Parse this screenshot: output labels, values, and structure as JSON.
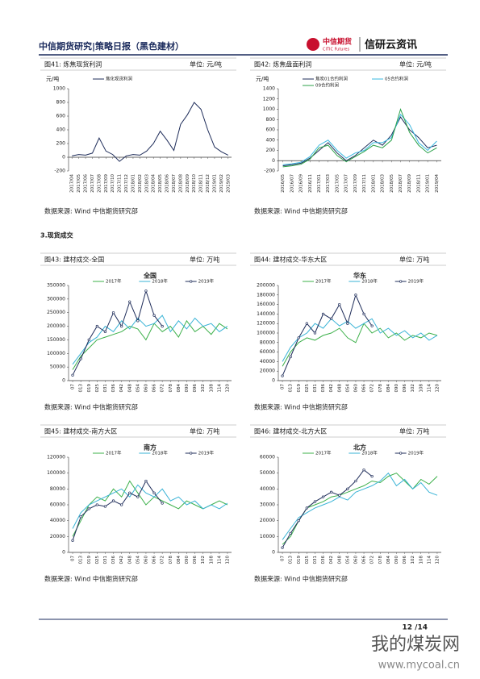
{
  "header": {
    "title": "中信期货研究|策略日报（黑色建材）",
    "logo": "中信期货",
    "logo_en": "CITIC Futures",
    "brand": "信研云资讯"
  },
  "section": "3.现货成交",
  "chart_data": [
    {
      "type": "line",
      "figure": "图41: 炼焦现货利润",
      "unit": "单位: 元/吨",
      "source": "数据来源: Wind 中信期货研究部",
      "categories": [
        "2017/04",
        "2017/05",
        "2017/06",
        "2017/07",
        "2017/08",
        "2017/09",
        "2017/10",
        "2017/11",
        "2017/12",
        "2018/01",
        "2018/02",
        "2018/03",
        "2018/04",
        "2018/05",
        "2018/06",
        "2018/07",
        "2018/08",
        "2018/09",
        "2018/10",
        "2018/11",
        "2018/12",
        "2019/01",
        "2019/02",
        "2019/03"
      ],
      "series": [
        {
          "name": "焦化现货利润",
          "color": "#1f2d5a",
          "values": [
            20,
            40,
            30,
            60,
            280,
            90,
            40,
            -60,
            20,
            40,
            30,
            90,
            200,
            380,
            250,
            100,
            480,
            620,
            800,
            700,
            400,
            150,
            80,
            30
          ]
        }
      ],
      "ylim": [
        -200,
        1000
      ],
      "yticks": [
        -200,
        0,
        200,
        400,
        600,
        800,
        1000
      ],
      "y_label": "元/吨"
    },
    {
      "type": "line",
      "figure": "图42: 炼焦盘面利润",
      "unit": "单位: 元/吨",
      "source": "数据来源: Wind 中信期货研究部",
      "categories": [
        "2016/05",
        "2016/07",
        "2016/09",
        "2016/11",
        "2017/01",
        "2017/03",
        "2017/05",
        "2017/07",
        "2017/09",
        "2017/11",
        "2018/01",
        "2018/03",
        "2018/05",
        "2018/07",
        "2018/09",
        "2018/11",
        "2019/01",
        "2019/04"
      ],
      "series": [
        {
          "name": "焦炭01合约利润",
          "color": "#1f2d5a",
          "values": [
            -100,
            -80,
            -50,
            50,
            200,
            350,
            150,
            0,
            100,
            250,
            400,
            300,
            500,
            850,
            600,
            450,
            250,
            300
          ]
        },
        {
          "name": "05合约利润",
          "color": "#3ab8e0",
          "values": [
            -80,
            -60,
            -30,
            80,
            300,
            400,
            200,
            50,
            150,
            200,
            350,
            350,
            450,
            900,
            700,
            350,
            200,
            380
          ]
        },
        {
          "name": "09合约利润",
          "color": "#2ca24a",
          "values": [
            -120,
            -100,
            -70,
            30,
            250,
            300,
            100,
            -20,
            80,
            180,
            300,
            250,
            400,
            1000,
            550,
            300,
            150,
            250
          ]
        }
      ],
      "ylim": [
        -200,
        1400
      ],
      "yticks": [
        -200,
        0,
        200,
        400,
        600,
        800,
        1000,
        1200,
        1400
      ],
      "y_label": "元/吨"
    },
    {
      "type": "line",
      "figure": "图43: 建材成交-全国",
      "unit": "单位: 万吨",
      "source": "数据来源: Wind 中信期货研究部",
      "title": "全国",
      "categories": [
        "07",
        "013",
        "019",
        "025",
        "031",
        "036",
        "042",
        "048",
        "054",
        "060",
        "066",
        "072",
        "078",
        "084",
        "090",
        "096",
        "102",
        "108",
        "114",
        "120"
      ],
      "series": [
        {
          "name": "2017年",
          "color": "#3cb04a",
          "values": [
            40000,
            90000,
            120000,
            150000,
            160000,
            170000,
            180000,
            200000,
            190000,
            150000,
            210000,
            180000,
            200000,
            160000,
            220000,
            180000,
            200000,
            170000,
            210000,
            190000
          ]
        },
        {
          "name": "2018年",
          "color": "#39b3d6",
          "values": [
            60000,
            100000,
            140000,
            160000,
            200000,
            180000,
            220000,
            190000,
            230000,
            200000,
            210000,
            240000,
            180000,
            220000,
            190000,
            230000,
            200000,
            210000,
            180000,
            200000
          ]
        },
        {
          "name": "2019年",
          "color": "#1f2d5a",
          "markers": true,
          "values": [
            20000,
            80000,
            150000,
            200000,
            180000,
            250000,
            200000,
            290000,
            220000,
            330000,
            240000,
            200000,
            null,
            null,
            null,
            null,
            null,
            null,
            null,
            null
          ]
        }
      ],
      "ylim": [
        0,
        350000
      ],
      "yticks": [
        0,
        50000,
        100000,
        150000,
        200000,
        250000,
        300000,
        350000
      ]
    },
    {
      "type": "line",
      "figure": "图44: 建材成交-华东大区",
      "unit": "单位: 万吨",
      "source": "数据来源: Wind 中信期货研究部",
      "title": "华东",
      "categories": [
        "07",
        "013",
        "019",
        "025",
        "031",
        "036",
        "042",
        "048",
        "054",
        "060",
        "066",
        "072",
        "078",
        "084",
        "090",
        "096",
        "102",
        "108",
        "114",
        "120"
      ],
      "series": [
        {
          "name": "2017年",
          "color": "#3cb04a",
          "values": [
            30000,
            60000,
            80000,
            90000,
            85000,
            95000,
            100000,
            110000,
            90000,
            80000,
            120000,
            100000,
            110000,
            90000,
            100000,
            85000,
            95000,
            90000,
            100000,
            95000
          ]
        },
        {
          "name": "2018年",
          "color": "#39b3d6",
          "values": [
            40000,
            70000,
            90000,
            100000,
            120000,
            110000,
            130000,
            115000,
            125000,
            110000,
            120000,
            130000,
            100000,
            110000,
            95000,
            105000,
            90000,
            100000,
            85000,
            95000
          ]
        },
        {
          "name": "2019年",
          "color": "#1f2d5a",
          "markers": true,
          "values": [
            10000,
            50000,
            90000,
            120000,
            100000,
            140000,
            130000,
            160000,
            120000,
            180000,
            140000,
            115000,
            null,
            null,
            null,
            null,
            null,
            null,
            null,
            null
          ]
        }
      ],
      "ylim": [
        0,
        200000
      ],
      "yticks": [
        0,
        20000,
        40000,
        60000,
        80000,
        100000,
        120000,
        140000,
        160000,
        180000,
        200000
      ]
    },
    {
      "type": "line",
      "figure": "图45: 建材成交-南方大区",
      "unit": "单位: 万吨",
      "source": "数据来源: Wind 中信期货研究部",
      "title": "南方",
      "categories": [
        "07",
        "013",
        "019",
        "025",
        "031",
        "036",
        "042",
        "048",
        "054",
        "060",
        "066",
        "072",
        "078",
        "084",
        "090",
        "096",
        "102",
        "108",
        "114",
        "120"
      ],
      "series": [
        {
          "name": "2017年",
          "color": "#3cb04a",
          "values": [
            20000,
            40000,
            60000,
            70000,
            65000,
            80000,
            70000,
            90000,
            75000,
            60000,
            70000,
            65000,
            60000,
            55000,
            65000,
            60000,
            55000,
            60000,
            65000,
            60000
          ]
        },
        {
          "name": "2018年",
          "color": "#39b3d6",
          "values": [
            30000,
            50000,
            60000,
            65000,
            70000,
            75000,
            80000,
            70000,
            85000,
            75000,
            70000,
            80000,
            65000,
            70000,
            60000,
            65000,
            55000,
            60000,
            55000,
            62000
          ]
        },
        {
          "name": "2019年",
          "color": "#1f2d5a",
          "markers": true,
          "values": [
            15000,
            45000,
            55000,
            60000,
            58000,
            65000,
            60000,
            75000,
            70000,
            90000,
            75000,
            62000,
            null,
            null,
            null,
            null,
            null,
            null,
            null,
            null
          ]
        }
      ],
      "ylim": [
        0,
        120000
      ],
      "yticks": [
        0,
        20000,
        40000,
        60000,
        80000,
        100000,
        120000
      ]
    },
    {
      "type": "line",
      "figure": "图46: 建材成交-北方大区",
      "unit": "单位: 万吨",
      "source": "数据来源: Wind 中信期货研究部",
      "title": "北方",
      "categories": [
        "07",
        "013",
        "019",
        "025",
        "031",
        "036",
        "042",
        "048",
        "054",
        "060",
        "066",
        "072",
        "078",
        "084",
        "090",
        "096",
        "102",
        "108",
        "114",
        "120"
      ],
      "series": [
        {
          "name": "2017年",
          "color": "#3cb04a",
          "values": [
            5000,
            10000,
            20000,
            28000,
            30000,
            32000,
            35000,
            36000,
            38000,
            40000,
            42000,
            45000,
            44000,
            48000,
            50000,
            45000,
            40000,
            46000,
            43000,
            48000
          ]
        },
        {
          "name": "2018年",
          "color": "#39b3d6",
          "values": [
            8000,
            15000,
            22000,
            25000,
            28000,
            30000,
            32000,
            35000,
            33000,
            38000,
            40000,
            42000,
            45000,
            50000,
            42000,
            46000,
            40000,
            44000,
            38000,
            36000
          ]
        },
        {
          "name": "2019年",
          "color": "#1f2d5a",
          "markers": true,
          "values": [
            3000,
            12000,
            20000,
            28000,
            32000,
            35000,
            38000,
            36000,
            40000,
            45000,
            52000,
            48000,
            null,
            null,
            null,
            null,
            null,
            null,
            null,
            null
          ]
        }
      ],
      "ylim": [
        0,
        60000
      ],
      "yticks": [
        0,
        10000,
        20000,
        30000,
        40000,
        50000,
        60000
      ]
    }
  ],
  "footer": {
    "page": "12 /14"
  },
  "watermark": {
    "cn": "我的煤炭网",
    "url": "www.mycoal.cn"
  }
}
